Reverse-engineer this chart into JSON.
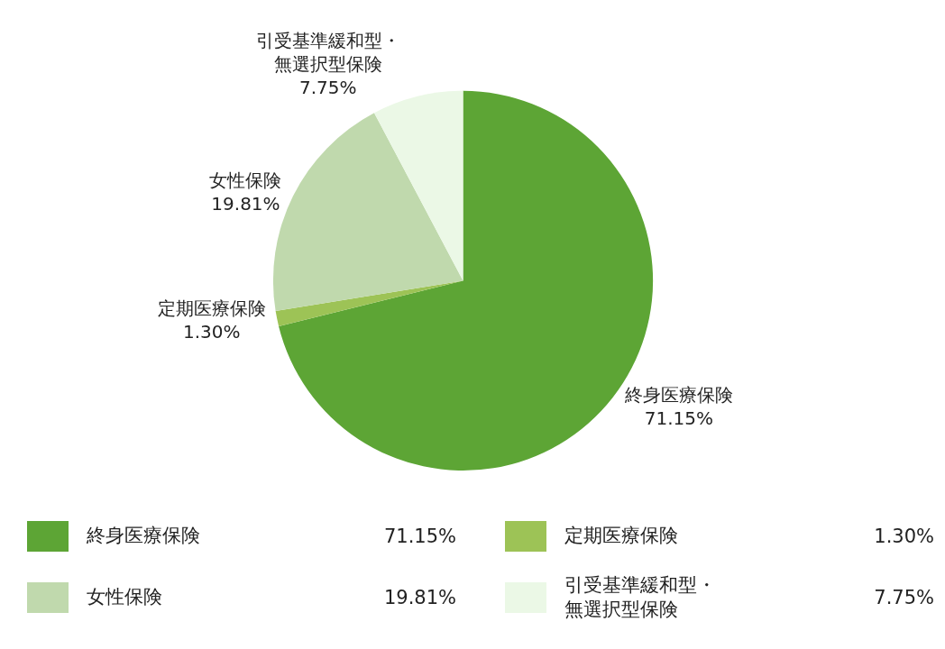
{
  "chart_data": {
    "type": "pie",
    "categories": [
      "終身医療保険",
      "定期医療保険",
      "女性保険",
      "引受基準緩和型・無選択型保険"
    ],
    "values": [
      71.15,
      1.3,
      19.81,
      7.75
    ],
    "value_labels": [
      "71.15%",
      "1.30%",
      "19.81%",
      "7.75%"
    ],
    "colors": [
      "#5da535",
      "#9dc356",
      "#c0d9ad",
      "#ebf8e6"
    ],
    "legend": "bottom"
  }
}
